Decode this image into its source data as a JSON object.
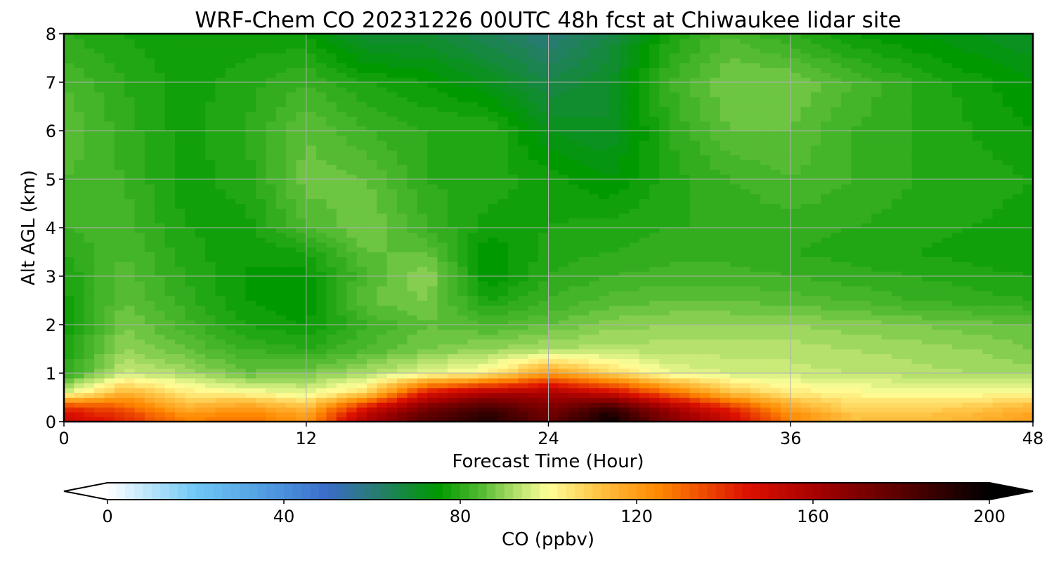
{
  "chart_data": {
    "type": "heatmap",
    "title": "WRF-Chem CO  20231226 00UTC 48h fcst at Chiwaukee lidar site",
    "xlabel": "Forecast Time (Hour)",
    "ylabel": "Alt AGL (km)",
    "xlim": [
      0,
      48
    ],
    "ylim": [
      0,
      8
    ],
    "x_ticks": [
      0,
      12,
      24,
      36,
      48
    ],
    "y_ticks": [
      0,
      1,
      2,
      3,
      4,
      5,
      6,
      7,
      8
    ],
    "grid": true,
    "x": [
      0,
      3,
      6,
      9,
      12,
      15,
      18,
      21,
      24,
      27,
      30,
      33,
      36,
      39,
      42,
      45,
      48
    ],
    "y": [
      0.1,
      0.3,
      0.6,
      1.0,
      1.5,
      2.0,
      2.5,
      3.0,
      3.5,
      4.0,
      5.0,
      6.0,
      7.0,
      8.0
    ],
    "z": [
      [
        150,
        140,
        125,
        128,
        120,
        158,
        180,
        192,
        175,
        197,
        168,
        150,
        125,
        112,
        112,
        115,
        120
      ],
      [
        140,
        132,
        115,
        120,
        112,
        145,
        172,
        185,
        170,
        186,
        160,
        140,
        118,
        108,
        108,
        110,
        115
      ],
      [
        96,
        115,
        104,
        101,
        97,
        108,
        145,
        158,
        160,
        150,
        130,
        112,
        104,
        101,
        100,
        100,
        101
      ],
      [
        80,
        95,
        92,
        86,
        88,
        92,
        98,
        102,
        120,
        108,
        98,
        96,
        95,
        94,
        93,
        92,
        91
      ],
      [
        78,
        90,
        86,
        82,
        80,
        84,
        88,
        90,
        92,
        93,
        93,
        93,
        93,
        92,
        91,
        90,
        88
      ],
      [
        76,
        88,
        83,
        78,
        76,
        82,
        86,
        84,
        86,
        89,
        90,
        90,
        90,
        89,
        88,
        87,
        86
      ],
      [
        77,
        86,
        81,
        76,
        74,
        86,
        88,
        78,
        82,
        85,
        86,
        86,
        85,
        84,
        82,
        81,
        80
      ],
      [
        78,
        85,
        80,
        76,
        75,
        84,
        90,
        74,
        80,
        82,
        83,
        83,
        82,
        81,
        80,
        79,
        78
      ],
      [
        80,
        84,
        79,
        76,
        78,
        86,
        86,
        74,
        79,
        80,
        81,
        81,
        80,
        79,
        78,
        77,
        76
      ],
      [
        82,
        83,
        78,
        77,
        84,
        88,
        82,
        77,
        78,
        79,
        80,
        80,
        81,
        80,
        79,
        78,
        77
      ],
      [
        84,
        82,
        77,
        79,
        87,
        86,
        80,
        79,
        77,
        74,
        79,
        82,
        84,
        82,
        80,
        79,
        78
      ],
      [
        86,
        81,
        77,
        80,
        86,
        82,
        80,
        80,
        72,
        70,
        80,
        86,
        86,
        82,
        80,
        78,
        76
      ],
      [
        84,
        80,
        77,
        79,
        82,
        78,
        76,
        72,
        66,
        70,
        82,
        88,
        88,
        84,
        80,
        77,
        74
      ],
      [
        80,
        78,
        76,
        77,
        76,
        68,
        68,
        64,
        60,
        66,
        78,
        84,
        80,
        76,
        74,
        72,
        70
      ]
    ],
    "colorbar": {
      "label": "CO  (ppbv)",
      "vmin": 0,
      "vmax": 200,
      "ticks": [
        0,
        40,
        80,
        120,
        160,
        200
      ],
      "extend": "both",
      "stops": [
        {
          "value": 0,
          "color": "#ffffff"
        },
        {
          "value": 20,
          "color": "#6ec8f5"
        },
        {
          "value": 40,
          "color": "#4a90dc"
        },
        {
          "value": 50,
          "color": "#3a6bc8"
        },
        {
          "value": 60,
          "color": "#2a7a78"
        },
        {
          "value": 75,
          "color": "#009900"
        },
        {
          "value": 85,
          "color": "#55bb33"
        },
        {
          "value": 92,
          "color": "#aadd66"
        },
        {
          "value": 100,
          "color": "#ffff99"
        },
        {
          "value": 112,
          "color": "#ffc040"
        },
        {
          "value": 125,
          "color": "#ff8800"
        },
        {
          "value": 145,
          "color": "#dd1100"
        },
        {
          "value": 162,
          "color": "#a00000"
        },
        {
          "value": 182,
          "color": "#500000"
        },
        {
          "value": 200,
          "color": "#000000"
        }
      ]
    }
  }
}
